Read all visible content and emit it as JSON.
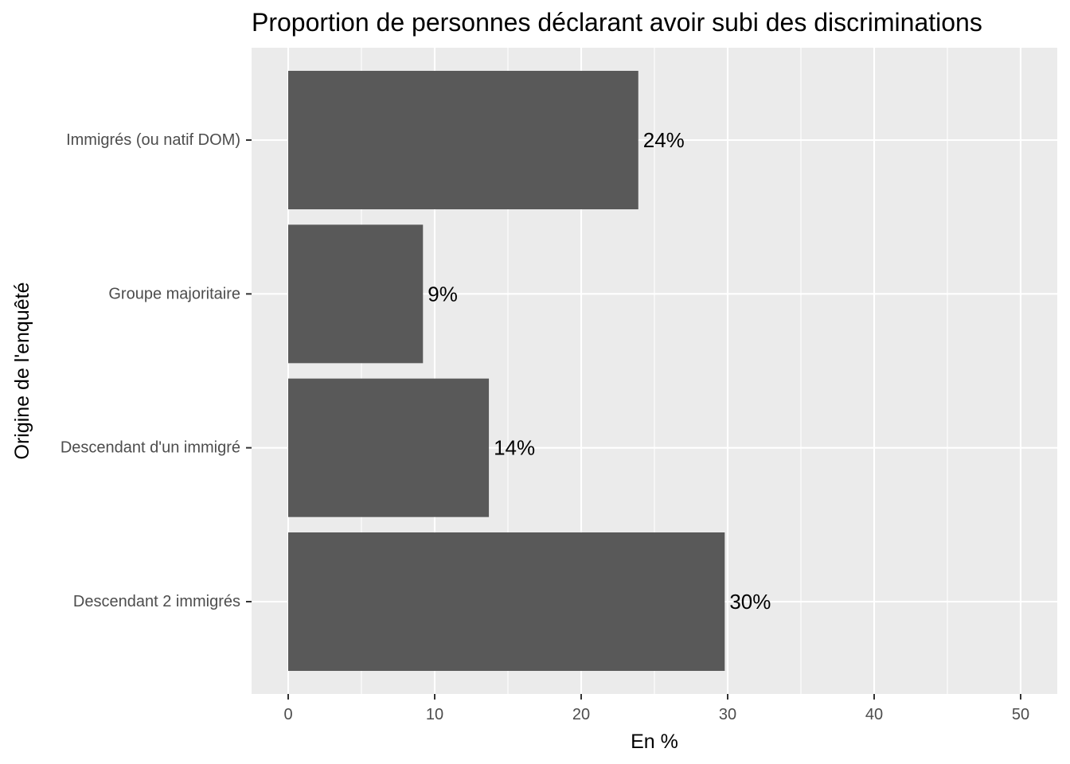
{
  "chart_data": {
    "type": "bar",
    "orientation": "horizontal",
    "title": "Proportion de personnes déclarant avoir subi des discriminations",
    "xlabel": "En %",
    "ylabel": "Origine de l'enquêté",
    "categories": [
      "Immigrés (ou natif DOM)",
      "Groupe majoritaire",
      "Descendant d'un immigré",
      "Descendant 2 immigrés"
    ],
    "values": [
      23.9,
      9.2,
      13.7,
      29.8
    ],
    "data_labels": [
      "24%",
      "9%",
      "14%",
      "30%"
    ],
    "xlim": [
      -2.5,
      52.5
    ],
    "x_ticks": [
      0,
      10,
      20,
      30,
      40,
      50
    ],
    "x_tick_labels": [
      "0",
      "10",
      "20",
      "30",
      "40",
      "50"
    ],
    "grid": true,
    "legend": "none",
    "colors": {
      "panel": "#ebebeb",
      "bar": "#595959",
      "grid": "#ffffff",
      "tick_text": "#4d4d4d",
      "text": "#000000"
    }
  }
}
